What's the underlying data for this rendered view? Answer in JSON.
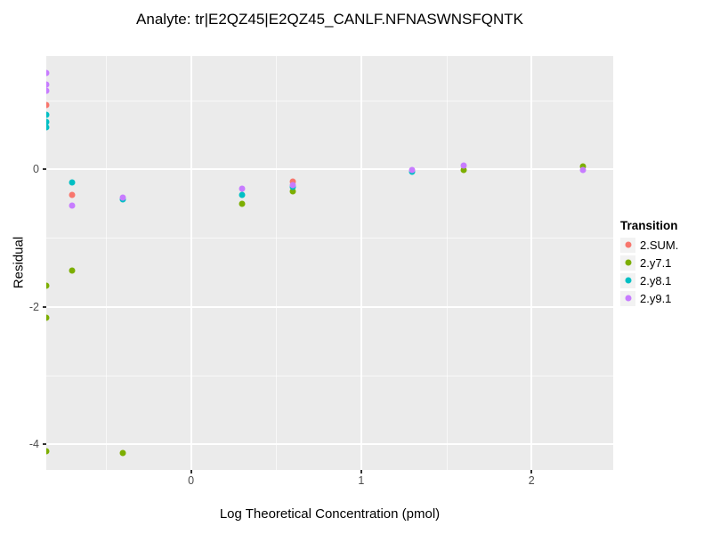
{
  "chart_data": {
    "type": "scatter",
    "title": "Analyte: tr|E2QZ45|E2QZ45_CANLF.NFNASWNSFQNTK",
    "xlabel": "Log Theoretical Concentration (pmol)",
    "ylabel": "Residual",
    "xlim": [
      -0.85,
      2.48
    ],
    "ylim": [
      -4.37,
      1.64
    ],
    "x_ticks": [
      0,
      1,
      2
    ],
    "x_tick_labels": [
      "0",
      "1",
      "2"
    ],
    "y_ticks": [
      0,
      -2,
      -4
    ],
    "y_tick_labels": [
      "0",
      "-2",
      "-4"
    ],
    "x_minor_ticks": [
      -0.5,
      0.5,
      1.5
    ],
    "y_minor_ticks": [
      1,
      -1,
      -3
    ],
    "grid": true,
    "legend_position": "right",
    "legend_title": "Transition",
    "panel_bg": "#EBEBEB",
    "grid_color": "#FFFFFF",
    "series": [
      {
        "name": "2.SUM.",
        "color": "#F8766D",
        "points": [
          [
            -0.85,
            0.93
          ],
          [
            -0.7,
            -0.37
          ],
          [
            0.6,
            -0.18
          ]
        ]
      },
      {
        "name": "2.y7.1",
        "color": "#7CAE00",
        "points": [
          [
            -0.85,
            -1.7
          ],
          [
            -0.85,
            -2.16
          ],
          [
            -0.85,
            -4.1
          ],
          [
            -0.7,
            -1.47
          ],
          [
            -0.4,
            -4.13
          ],
          [
            0.3,
            -0.51
          ],
          [
            0.6,
            -0.32
          ],
          [
            1.6,
            -0.02
          ],
          [
            2.3,
            0.04
          ]
        ]
      },
      {
        "name": "2.y8.1",
        "color": "#00BFC4",
        "points": [
          [
            -0.85,
            0.79
          ],
          [
            -0.85,
            0.69
          ],
          [
            -0.85,
            0.61
          ],
          [
            -0.7,
            -0.19
          ],
          [
            -0.4,
            -0.44
          ],
          [
            0.3,
            -0.38
          ],
          [
            0.6,
            -0.26
          ],
          [
            1.3,
            -0.04
          ]
        ]
      },
      {
        "name": "2.y9.1",
        "color": "#C77CFF",
        "points": [
          [
            -0.85,
            1.4
          ],
          [
            -0.85,
            1.22
          ],
          [
            -0.85,
            1.14
          ],
          [
            -0.7,
            -0.53
          ],
          [
            -0.4,
            -0.41
          ],
          [
            0.3,
            -0.29
          ],
          [
            0.6,
            -0.24
          ],
          [
            1.3,
            -0.01
          ],
          [
            1.6,
            0.05
          ],
          [
            2.3,
            -0.01
          ]
        ]
      }
    ]
  }
}
